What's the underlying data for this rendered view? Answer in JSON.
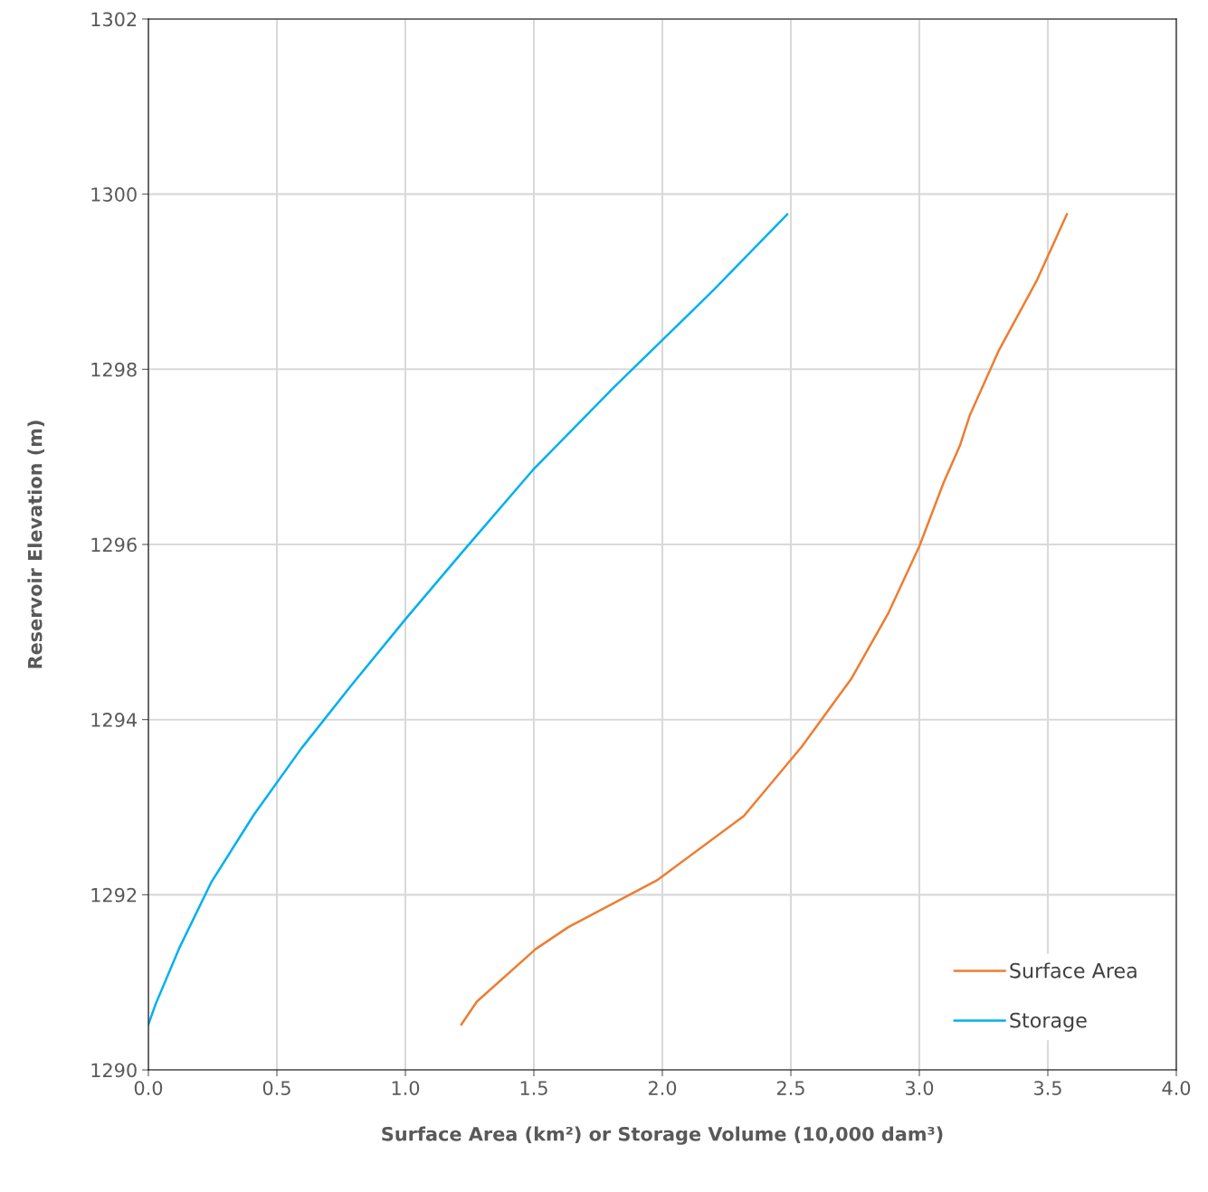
{
  "chart_data": {
    "type": "line",
    "xlabel": "Surface Area (km²) or Storage Volume (10,000 dam³)",
    "ylabel": "Reservoir Elevation (m)",
    "series": [
      {
        "name": "Surface Area",
        "color": "#ed7d31",
        "x": [
          1.218,
          1.278,
          1.507,
          1.634,
          1.982,
          2.317,
          2.542,
          2.736,
          2.88,
          3.0,
          3.095,
          3.158,
          3.197,
          3.31,
          3.458,
          3.574
        ],
        "values": [
          1290.52,
          1290.78,
          1291.38,
          1291.63,
          1292.17,
          1292.9,
          1293.69,
          1294.47,
          1295.22,
          1295.98,
          1296.71,
          1297.13,
          1297.48,
          1298.22,
          1299.02,
          1299.77
        ]
      },
      {
        "name": "Storage",
        "color": "#00b0f0",
        "x": [
          0.0,
          0.028,
          0.12,
          0.246,
          0.412,
          0.595,
          0.792,
          1.004,
          1.218,
          1.496,
          1.81,
          2.201,
          2.486
        ],
        "values": [
          1290.52,
          1290.75,
          1291.39,
          1292.15,
          1292.92,
          1293.67,
          1294.4,
          1295.16,
          1295.9,
          1296.85,
          1297.79,
          1298.91,
          1299.77
        ]
      }
    ],
    "xlim": [
      0,
      4.0
    ],
    "xticks": [
      {
        "value": 0,
        "label": "0.0"
      },
      0.5,
      {
        "value": 1,
        "label": "1.0"
      },
      1.5,
      {
        "value": 2,
        "label": "2.0"
      },
      2.5,
      {
        "value": 3,
        "label": "3.0"
      },
      3.5,
      {
        "value": 4,
        "label": "4.0"
      }
    ],
    "ylim": [
      1290,
      1302
    ],
    "yticks": [
      1290,
      1292,
      1294,
      1296,
      1298,
      1300,
      1302
    ],
    "grid": true,
    "legend": "bottom right",
    "marker": "none",
    "line_style": "solid"
  }
}
